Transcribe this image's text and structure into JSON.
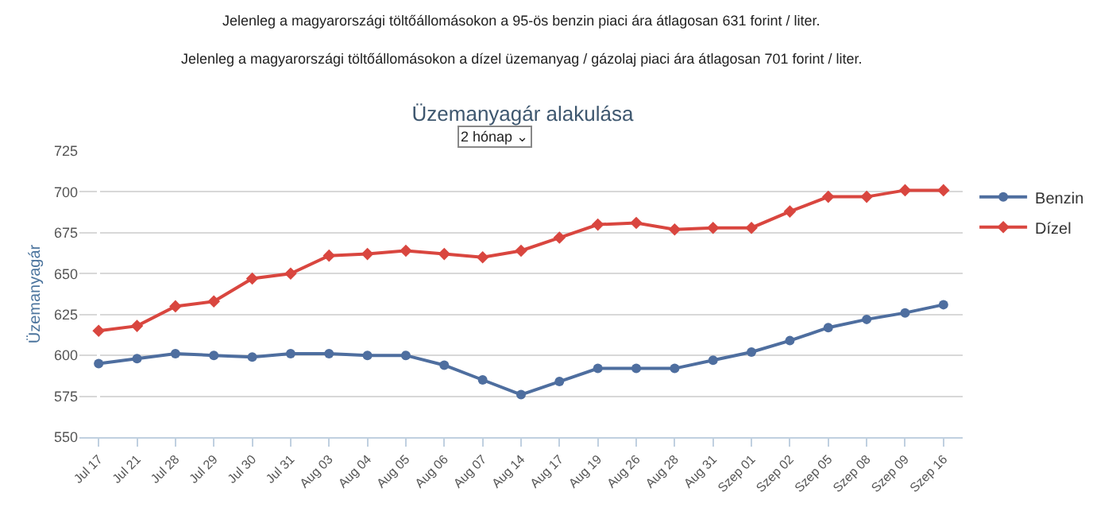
{
  "chart_data": {
    "type": "line",
    "title": "Üzemanyagár alakulása",
    "annotations": [
      "Jelenleg a magyarországi töltőállomásokon a 95-ös benzin piaci ára átlagosan 631 forint / liter.",
      "Jelenleg a magyarországi töltőállomásokon a dízel üzemanyag / gázolaj piaci ára átlagosan 701 forint / liter.",
      "2 hónap ⌄"
    ],
    "ylabel": "Üzemanyagár",
    "categories": [
      "Jul 17",
      "Jul 21",
      "Jul 28",
      "Jul 29",
      "Jul 30",
      "Jul 31",
      "Aug 03",
      "Aug 04",
      "Aug 05",
      "Aug 06",
      "Aug 07",
      "Aug 14",
      "Aug 17",
      "Aug 19",
      "Aug 26",
      "Aug 28",
      "Aug 31",
      "Szep 01",
      "Szep 02",
      "Szep 05",
      "Szep 08",
      "Szep 09",
      "Szep 16"
    ],
    "series": [
      {
        "name": "Benzin",
        "color": "#4e6e9f",
        "marker": "circle",
        "values": [
          595,
          598,
          601,
          600,
          599,
          601,
          601,
          600,
          600,
          594,
          585,
          576,
          584,
          592,
          592,
          592,
          597,
          602,
          609,
          617,
          622,
          626,
          631
        ]
      },
      {
        "name": "Dízel",
        "color": "#d9463f",
        "marker": "diamond",
        "values": [
          615,
          618,
          630,
          633,
          647,
          650,
          661,
          662,
          664,
          662,
          660,
          664,
          672,
          680,
          681,
          677,
          678,
          678,
          688,
          697,
          697,
          701,
          701
        ]
      }
    ],
    "ylim": [
      550,
      725
    ],
    "yticks": [
      550,
      575,
      600,
      625,
      650,
      675,
      700,
      725
    ],
    "grid": "y",
    "legend": "top right",
    "line_style": "solid"
  }
}
